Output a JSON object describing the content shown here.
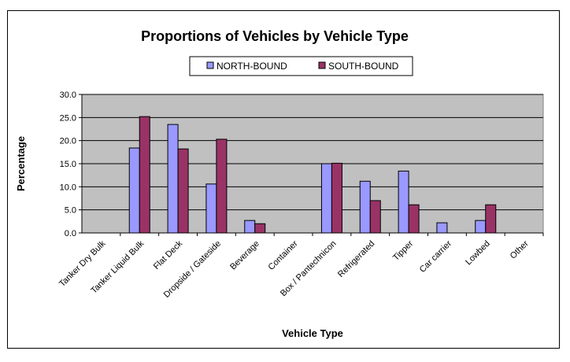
{
  "chart_data": {
    "type": "bar",
    "title": "Proportions of Vehicles by Vehicle Type",
    "xlabel": "Vehicle Type",
    "ylabel": "Percentage",
    "ylim": [
      0,
      30
    ],
    "yticks": [
      "0.0",
      "5.0",
      "10.0",
      "15.0",
      "20.0",
      "25.0",
      "30.0"
    ],
    "grid": true,
    "legend": "top",
    "categories": [
      "Tanker Dry Bulk",
      "Tanker Liquid Bulk",
      "Flat Deck",
      "Dropside / Gateside",
      "Beverage",
      "Container",
      "Box / Pantechnicon",
      "Refrigerated",
      "Tipper",
      "Car carrier",
      "Lowbed",
      "Other"
    ],
    "series": [
      {
        "name": "NORTH-BOUND",
        "color": "#9999FF",
        "values": [
          0,
          18.4,
          23.5,
          10.6,
          2.7,
          0,
          15.0,
          11.2,
          13.4,
          2.2,
          2.7,
          0
        ]
      },
      {
        "name": "SOUTH-BOUND",
        "color": "#993366",
        "values": [
          0,
          25.2,
          18.2,
          20.3,
          2.0,
          0,
          15.1,
          7.0,
          6.1,
          0,
          6.1,
          0
        ]
      }
    ],
    "plot_background": "#C0C0C0"
  }
}
